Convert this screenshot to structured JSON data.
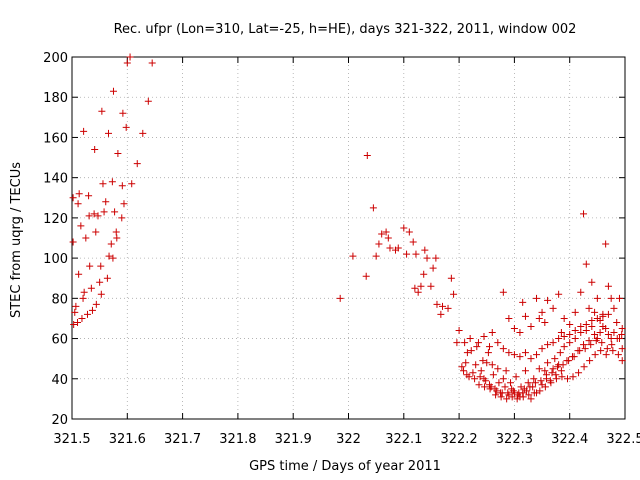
{
  "chart_data": {
    "type": "scatter",
    "title": "Rec. ufpr (Lon=310, Lat=-25, h=HE), days 321-322, 2011, window 002",
    "xlabel": "GPS time / Days of year 2011",
    "ylabel": "STEC from uqrg / TECUs",
    "xlim": [
      321.5,
      322.5
    ],
    "ylim": [
      20,
      200
    ],
    "xticks": [
      321.5,
      321.6,
      321.7,
      321.8,
      321.9,
      322,
      322.1,
      322.2,
      322.3,
      322.4,
      322.5
    ],
    "xtick_labels": [
      "321.5",
      "321.6",
      "321.7",
      "321.8",
      "321.9",
      "322",
      "322.1",
      "322.2",
      "322.3",
      "322.4",
      "322.5"
    ],
    "yticks": [
      20,
      40,
      60,
      80,
      100,
      120,
      140,
      160,
      180,
      200
    ],
    "ytick_labels": [
      "20",
      "40",
      "60",
      "80",
      "100",
      "120",
      "140",
      "160",
      "180",
      "200"
    ],
    "grid": true,
    "grid_style": "dotted",
    "marker": "plus",
    "marker_color": "#cc0000",
    "points": [
      [
        321.502,
        108
      ],
      [
        321.502,
        130
      ],
      [
        321.503,
        67
      ],
      [
        321.505,
        73
      ],
      [
        321.507,
        76
      ],
      [
        321.51,
        68
      ],
      [
        321.511,
        127
      ],
      [
        321.512,
        92
      ],
      [
        321.513,
        132
      ],
      [
        321.516,
        116
      ],
      [
        321.518,
        70
      ],
      [
        321.52,
        80
      ],
      [
        321.521,
        163
      ],
      [
        321.522,
        83
      ],
      [
        321.525,
        110
      ],
      [
        321.528,
        72
      ],
      [
        321.53,
        131
      ],
      [
        321.531,
        121
      ],
      [
        321.532,
        96
      ],
      [
        321.535,
        85
      ],
      [
        321.537,
        74
      ],
      [
        321.54,
        122
      ],
      [
        321.541,
        154
      ],
      [
        321.543,
        113
      ],
      [
        321.544,
        77
      ],
      [
        321.547,
        121
      ],
      [
        321.55,
        88
      ],
      [
        321.552,
        96
      ],
      [
        321.553,
        82
      ],
      [
        321.554,
        173
      ],
      [
        321.556,
        137
      ],
      [
        321.558,
        123
      ],
      [
        321.561,
        128
      ],
      [
        321.564,
        90
      ],
      [
        321.566,
        162
      ],
      [
        321.567,
        101
      ],
      [
        321.571,
        107
      ],
      [
        321.573,
        138
      ],
      [
        321.574,
        100
      ],
      [
        321.575,
        183
      ],
      [
        321.577,
        123
      ],
      [
        321.58,
        113
      ],
      [
        321.581,
        110
      ],
      [
        321.583,
        152
      ],
      [
        321.59,
        120
      ],
      [
        321.591,
        136
      ],
      [
        321.592,
        172
      ],
      [
        321.594,
        127
      ],
      [
        321.598,
        165
      ],
      [
        321.6,
        197
      ],
      [
        321.605,
        200
      ],
      [
        321.608,
        137
      ],
      [
        321.618,
        147
      ],
      [
        321.628,
        162
      ],
      [
        321.638,
        178
      ],
      [
        321.645,
        197
      ],
      [
        321.985,
        80
      ],
      [
        322.008,
        101
      ],
      [
        322.032,
        91
      ],
      [
        322.034,
        151
      ],
      [
        322.045,
        125
      ],
      [
        322.05,
        101
      ],
      [
        322.055,
        107
      ],
      [
        322.06,
        112
      ],
      [
        322.068,
        113
      ],
      [
        322.072,
        110
      ],
      [
        322.075,
        105
      ],
      [
        322.085,
        104
      ],
      [
        322.09,
        105
      ],
      [
        322.1,
        115
      ],
      [
        322.105,
        102
      ],
      [
        322.11,
        113
      ],
      [
        322.117,
        108
      ],
      [
        322.12,
        85
      ],
      [
        322.122,
        102
      ],
      [
        322.126,
        83
      ],
      [
        322.131,
        86
      ],
      [
        322.136,
        92
      ],
      [
        322.138,
        104
      ],
      [
        322.142,
        100
      ],
      [
        322.149,
        86
      ],
      [
        322.153,
        95
      ],
      [
        322.158,
        100
      ],
      [
        322.16,
        77
      ],
      [
        322.167,
        72
      ],
      [
        322.17,
        76
      ],
      [
        322.18,
        75
      ],
      [
        322.186,
        90
      ],
      [
        322.19,
        82
      ],
      [
        322.196,
        58
      ],
      [
        322.2,
        64
      ],
      [
        322.21,
        58
      ],
      [
        322.212,
        48
      ],
      [
        322.215,
        53
      ],
      [
        322.22,
        60
      ],
      [
        322.222,
        54
      ],
      [
        322.225,
        43
      ],
      [
        322.23,
        47
      ],
      [
        322.232,
        56
      ],
      [
        322.24,
        44
      ],
      [
        322.243,
        49
      ],
      [
        322.245,
        40
      ],
      [
        322.25,
        48
      ],
      [
        322.253,
        53
      ],
      [
        322.255,
        37
      ],
      [
        322.26,
        47
      ],
      [
        322.262,
        42
      ],
      [
        322.265,
        35
      ],
      [
        322.27,
        45
      ],
      [
        322.272,
        38
      ],
      [
        322.275,
        33
      ],
      [
        322.28,
        40
      ],
      [
        322.283,
        36
      ],
      [
        322.285,
        44
      ],
      [
        322.29,
        32
      ],
      [
        322.293,
        38
      ],
      [
        322.295,
        35
      ],
      [
        322.3,
        33
      ],
      [
        322.303,
        41
      ],
      [
        322.305,
        30
      ],
      [
        322.31,
        31
      ],
      [
        322.312,
        36
      ],
      [
        322.315,
        33
      ],
      [
        322.32,
        44
      ],
      [
        322.322,
        34
      ],
      [
        322.325,
        38
      ],
      [
        322.33,
        30
      ],
      [
        322.333,
        36
      ],
      [
        322.335,
        40
      ],
      [
        322.34,
        33
      ],
      [
        322.345,
        45
      ],
      [
        322.35,
        37
      ],
      [
        322.355,
        44
      ],
      [
        322.358,
        40
      ],
      [
        322.36,
        48
      ],
      [
        322.365,
        39
      ],
      [
        322.37,
        45
      ],
      [
        322.373,
        50
      ],
      [
        322.375,
        42
      ],
      [
        322.38,
        47
      ],
      [
        322.383,
        53
      ],
      [
        322.385,
        44
      ],
      [
        322.39,
        56
      ],
      [
        322.395,
        49
      ],
      [
        322.4,
        58
      ],
      [
        322.405,
        51
      ],
      [
        322.41,
        60
      ],
      [
        322.415,
        54
      ],
      [
        322.42,
        63
      ],
      [
        322.425,
        57
      ],
      [
        322.43,
        64
      ],
      [
        322.435,
        59
      ],
      [
        322.44,
        66
      ],
      [
        322.445,
        62
      ],
      [
        322.45,
        60
      ],
      [
        322.455,
        63
      ],
      [
        322.46,
        66
      ],
      [
        322.465,
        65
      ],
      [
        322.47,
        62
      ],
      [
        322.475,
        60
      ],
      [
        322.28,
        83
      ],
      [
        322.29,
        70
      ],
      [
        322.3,
        65
      ],
      [
        322.31,
        63
      ],
      [
        322.315,
        78
      ],
      [
        322.32,
        71
      ],
      [
        322.33,
        66
      ],
      [
        322.34,
        80
      ],
      [
        322.345,
        70
      ],
      [
        322.35,
        73
      ],
      [
        322.355,
        68
      ],
      [
        322.36,
        79
      ],
      [
        322.37,
        75
      ],
      [
        322.38,
        82
      ],
      [
        322.385,
        63
      ],
      [
        322.39,
        70
      ],
      [
        322.4,
        67
      ],
      [
        322.41,
        73
      ],
      [
        322.42,
        83
      ],
      [
        322.425,
        122
      ],
      [
        322.43,
        97
      ],
      [
        322.435,
        75
      ],
      [
        322.44,
        88
      ],
      [
        322.445,
        73
      ],
      [
        322.45,
        80
      ],
      [
        322.455,
        69
      ],
      [
        322.46,
        72
      ],
      [
        322.465,
        107
      ],
      [
        322.47,
        86
      ],
      [
        322.475,
        80
      ],
      [
        322.48,
        75
      ],
      [
        322.485,
        68
      ],
      [
        322.49,
        80
      ],
      [
        322.495,
        65
      ],
      [
        322.235,
        58
      ],
      [
        322.245,
        61
      ],
      [
        322.255,
        56
      ],
      [
        322.26,
        63
      ],
      [
        322.27,
        58
      ],
      [
        322.28,
        55
      ],
      [
        322.29,
        53
      ],
      [
        322.3,
        52
      ],
      [
        322.31,
        51
      ],
      [
        322.32,
        53
      ],
      [
        322.33,
        50
      ],
      [
        322.34,
        52
      ],
      [
        322.35,
        55
      ],
      [
        322.36,
        57
      ],
      [
        322.37,
        58
      ],
      [
        322.38,
        60
      ],
      [
        322.39,
        61
      ],
      [
        322.4,
        62
      ],
      [
        322.41,
        64
      ],
      [
        322.42,
        66
      ],
      [
        322.43,
        67
      ],
      [
        322.44,
        69
      ],
      [
        322.45,
        70
      ],
      [
        322.46,
        71
      ],
      [
        322.47,
        72
      ],
      [
        322.48,
        63
      ],
      [
        322.49,
        60
      ],
      [
        322.495,
        55
      ],
      [
        322.238,
        41
      ],
      [
        322.248,
        39
      ],
      [
        322.258,
        36
      ],
      [
        322.268,
        34
      ],
      [
        322.278,
        33
      ],
      [
        322.288,
        33
      ],
      [
        322.298,
        34
      ],
      [
        322.308,
        33
      ],
      [
        322.318,
        35
      ],
      [
        322.328,
        36
      ],
      [
        322.338,
        38
      ],
      [
        322.348,
        39
      ],
      [
        322.358,
        42
      ],
      [
        322.368,
        43
      ],
      [
        322.378,
        46
      ],
      [
        322.388,
        47
      ],
      [
        322.398,
        49
      ],
      [
        322.408,
        51
      ],
      [
        322.418,
        54
      ],
      [
        322.428,
        55
      ],
      [
        322.438,
        57
      ],
      [
        322.448,
        59
      ],
      [
        322.458,
        58
      ],
      [
        322.468,
        55
      ],
      [
        322.478,
        54
      ],
      [
        322.488,
        52
      ],
      [
        322.495,
        49
      ],
      [
        322.205,
        46
      ],
      [
        322.208,
        44
      ],
      [
        322.214,
        42
      ],
      [
        322.218,
        41
      ],
      [
        322.228,
        40
      ],
      [
        322.236,
        37
      ],
      [
        322.246,
        36
      ],
      [
        322.256,
        35
      ],
      [
        322.266,
        32
      ],
      [
        322.276,
        31
      ],
      [
        322.286,
        30
      ],
      [
        322.296,
        31
      ],
      [
        322.306,
        32
      ],
      [
        322.316,
        31
      ],
      [
        322.326,
        32
      ],
      [
        322.336,
        33
      ],
      [
        322.346,
        34
      ],
      [
        322.356,
        36
      ],
      [
        322.366,
        38
      ],
      [
        322.376,
        40
      ],
      [
        322.386,
        41
      ],
      [
        322.396,
        40
      ],
      [
        322.406,
        41
      ],
      [
        322.416,
        43
      ],
      [
        322.426,
        46
      ],
      [
        322.436,
        49
      ],
      [
        322.446,
        52
      ],
      [
        322.456,
        54
      ],
      [
        322.466,
        52
      ],
      [
        322.476,
        57
      ],
      [
        322.486,
        60
      ],
      [
        322.494,
        62
      ]
    ]
  }
}
